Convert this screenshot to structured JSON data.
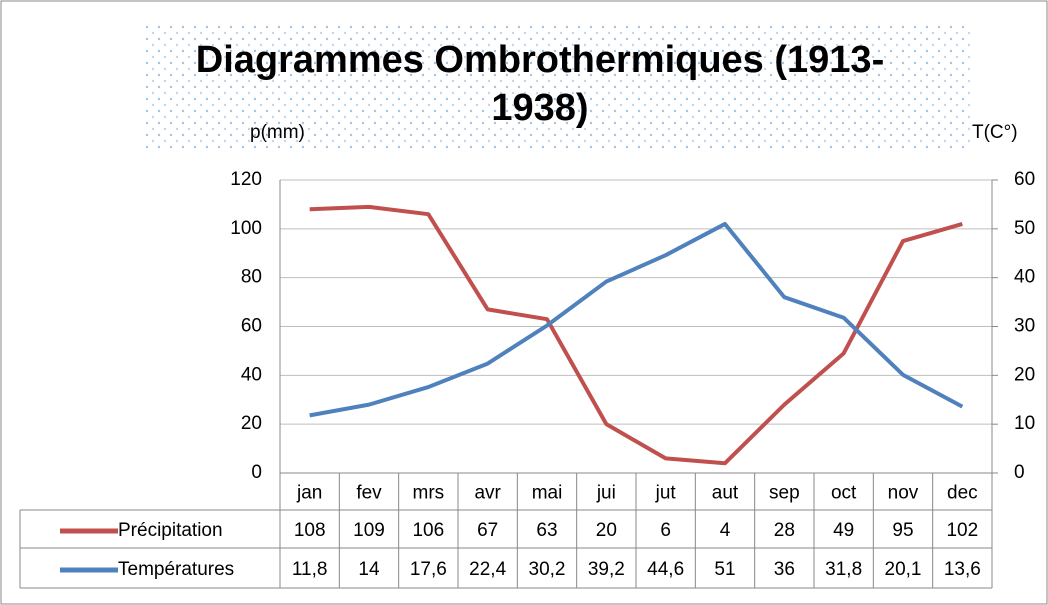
{
  "chart_data": {
    "type": "line",
    "title": "Diagrammes Ombrothermiques (1913-1938)",
    "ylabel": "p(mm)",
    "y2label": "T(C°)",
    "categories": [
      "jan",
      "fev",
      "mrs",
      "avr",
      "mai",
      "jui",
      "jut",
      "aut",
      "sep",
      "oct",
      "nov",
      "dec"
    ],
    "series": [
      {
        "name": "Précipitation",
        "color": "#c0504d",
        "values": [
          108,
          109,
          106,
          67,
          63,
          20,
          6,
          4,
          28,
          49,
          95,
          102
        ]
      },
      {
        "name": "Températures",
        "color": "#4f81bd",
        "axis": "y2",
        "values": [
          11.8,
          14,
          17.6,
          22.4,
          30.2,
          39.2,
          44.6,
          51,
          36,
          31.8,
          20.1,
          13.6
        ],
        "value_labels": [
          "11,8",
          "14",
          "17,6",
          "22,4",
          "30,2",
          "39,2",
          "44,6",
          "51",
          "36",
          "31,8",
          "20,1",
          "13,6"
        ]
      }
    ],
    "ylim": [
      0,
      120
    ],
    "yticks": [
      0,
      20,
      40,
      60,
      80,
      100,
      120
    ],
    "y2lim": [
      0,
      60
    ],
    "y2ticks": [
      0,
      10,
      20,
      30,
      40,
      50,
      60
    ],
    "grid": true
  }
}
